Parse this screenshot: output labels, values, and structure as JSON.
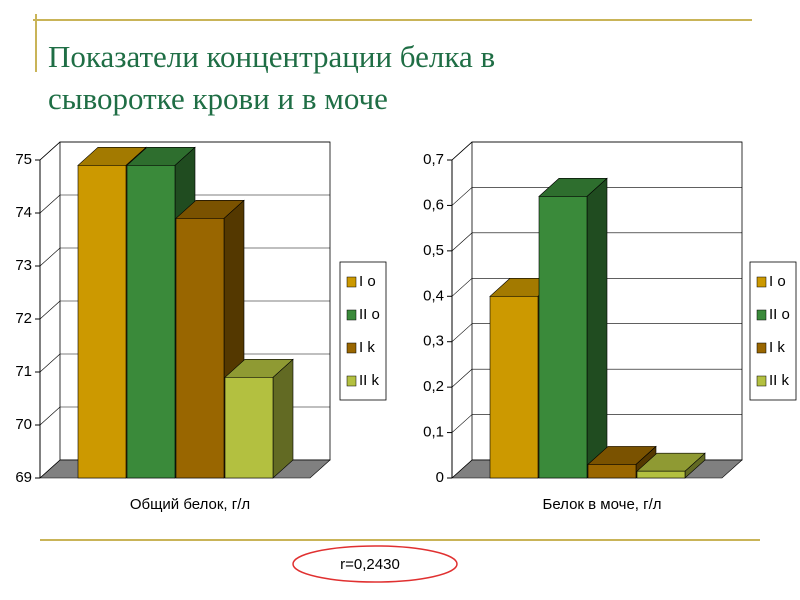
{
  "title": "Показатели концентрации белка в сыворотке крови и в моче",
  "annotation": "r=0,2430",
  "chart_data": [
    {
      "type": "bar",
      "categories": [
        "Общий белок, г/л"
      ],
      "series": [
        {
          "name": "I o",
          "color": "#cc9900",
          "values": [
            74.9
          ]
        },
        {
          "name": "II o",
          "color": "#3a8a3a",
          "values": [
            74.9
          ]
        },
        {
          "name": "I k",
          "color": "#996600",
          "values": [
            73.9
          ]
        },
        {
          "name": "II k",
          "color": "#b3c040",
          "values": [
            70.9
          ]
        }
      ],
      "ylim": [
        69,
        75
      ],
      "yticks": [
        69,
        70,
        71,
        72,
        73,
        74,
        75
      ],
      "grid": true,
      "legend": "right"
    },
    {
      "type": "bar",
      "categories": [
        "Белок в моче, г/л"
      ],
      "series": [
        {
          "name": "I o",
          "color": "#cc9900",
          "values": [
            0.4
          ]
        },
        {
          "name": "II o",
          "color": "#3a8a3a",
          "values": [
            0.62
          ]
        },
        {
          "name": "I k",
          "color": "#996600",
          "values": [
            0.03
          ]
        },
        {
          "name": "II k",
          "color": "#b3c040",
          "values": [
            0.015
          ]
        }
      ],
      "ylim": [
        0,
        0.7
      ],
      "yticks": [
        0,
        {
          "value": 0.1,
          "label": "0,1"
        },
        {
          "value": 0.2,
          "label": "0,2"
        },
        {
          "value": 0.3,
          "label": "0,3"
        },
        {
          "value": 0.4,
          "label": "0,4"
        },
        {
          "value": 0.5,
          "label": "0,5"
        },
        {
          "value": 0.6,
          "label": "0,6"
        },
        {
          "value": 0.7,
          "label": "0,7"
        }
      ],
      "grid": true,
      "legend": "right"
    }
  ]
}
